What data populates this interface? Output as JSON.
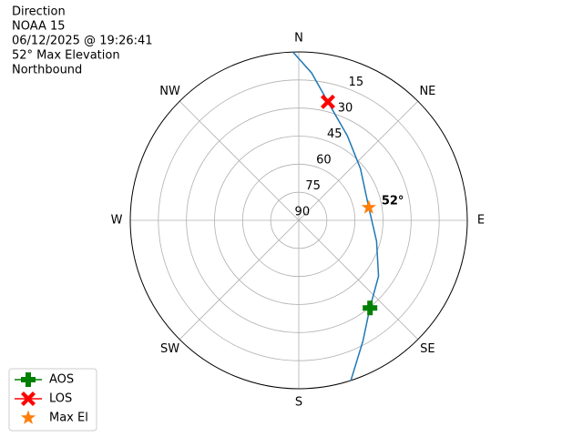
{
  "chart_data": {
    "type": "polar",
    "title": [
      "Direction",
      "NOAA 15",
      "06/12/2025 @ 19:26:41",
      "52° Max Elevation",
      "Northbound"
    ],
    "rlim": [
      90,
      0
    ],
    "rticks": [
      15,
      30,
      45,
      60,
      75,
      90
    ],
    "thetaticks": [
      {
        "value": 0,
        "label": "N"
      },
      {
        "value": 45,
        "label": "NE"
      },
      {
        "value": 90,
        "label": "E"
      },
      {
        "value": 135,
        "label": "SE"
      },
      {
        "value": 180,
        "label": "S"
      },
      {
        "value": 225,
        "label": "SW"
      },
      {
        "value": 270,
        "label": "W"
      },
      {
        "value": 315,
        "label": "NW"
      }
    ],
    "grid": true,
    "legend": "lower left",
    "series": [
      {
        "color": "#1f77b4",
        "marker": "line",
        "theta": [
          358,
          5,
          13.8,
          30,
          50,
          79.6,
          105,
          125,
          141,
          152,
          162
        ],
        "r": [
          0,
          11,
          24.8,
          38,
          47,
          52,
          47,
          38,
          29.7,
          17,
          0
        ]
      },
      {
        "name": "AOS",
        "color": "#008000",
        "marker": "plus",
        "theta": [
          140.9
        ],
        "r": [
          29.7
        ]
      },
      {
        "name": "LOS",
        "color": "#ff0000",
        "marker": "x",
        "theta": [
          13.8
        ],
        "r": [
          24.8
        ]
      },
      {
        "name": "Max El",
        "color": "#ff7f0e",
        "marker": "star",
        "theta": [
          79.6
        ],
        "r": [
          52
        ],
        "value_labels": [
          "52°"
        ]
      }
    ]
  }
}
